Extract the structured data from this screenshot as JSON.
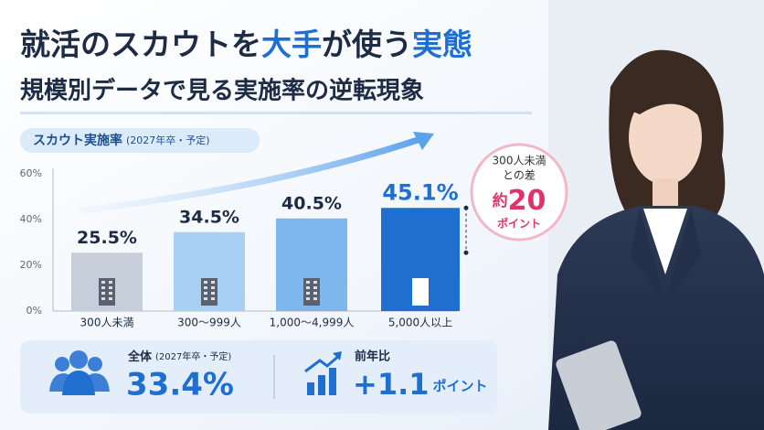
{
  "header": {
    "title": [
      "就活のスカウトを",
      "大手",
      "が使う",
      "実態"
    ],
    "subtitle": "規模別データで見る実施率の逆転現象"
  },
  "chart_data": {
    "type": "bar",
    "label": "スカウト実施率",
    "label_note": "(2027年卒・予定)",
    "categories": [
      "300人未満",
      "300〜999人",
      "1,000〜4,999人",
      "5,000人以上"
    ],
    "values": [
      25.5,
      34.5,
      40.5,
      45.1
    ],
    "value_labels": [
      "25.5%",
      "34.5%",
      "40.5%",
      "45.1%"
    ],
    "colors": [
      "#c7cfda",
      "#a9d0f3",
      "#7db7ee",
      "#1f6fd1"
    ],
    "ylim": [
      0,
      60
    ],
    "yticks": [
      {
        "value": 0,
        "label": "0%"
      },
      {
        "value": 20,
        "label": "20%"
      },
      {
        "value": 40,
        "label": "40%"
      },
      {
        "value": 60,
        "label": "60%"
      }
    ],
    "grid": false,
    "callout": {
      "line1": "300人未満",
      "line2": "との差",
      "prefix": "約",
      "value": "20",
      "unit": "ポイント"
    }
  },
  "summary": {
    "overall_label": "全体",
    "overall_note": "(2027年卒・予定)",
    "overall_value": "33.4%",
    "change_label": "前年比",
    "change_value": "+1.1",
    "change_unit": "ポイント"
  }
}
